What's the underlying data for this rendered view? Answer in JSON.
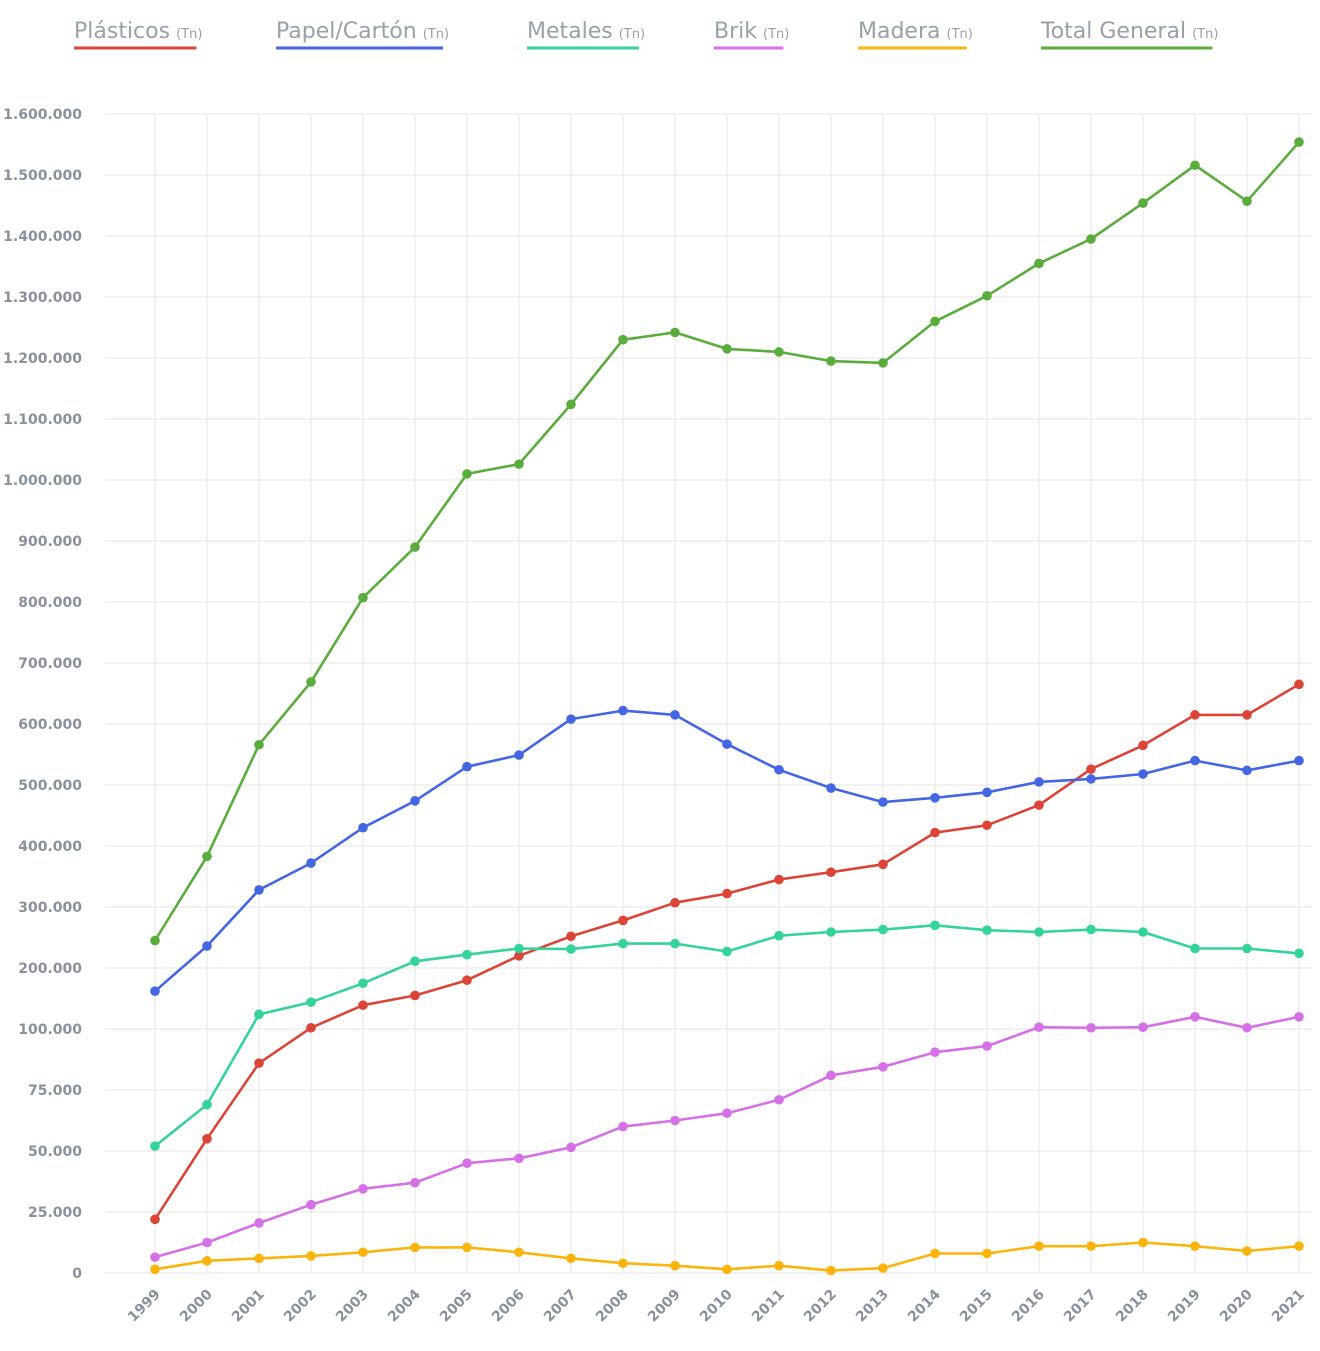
{
  "chart_data": {
    "type": "line",
    "title": "",
    "xlabel": "",
    "ylabel": "",
    "legend_position": "top",
    "grid": true,
    "y_scale": "piecewise",
    "y_ticks": [
      0,
      25000,
      50000,
      75000,
      100000,
      200000,
      300000,
      400000,
      500000,
      600000,
      700000,
      800000,
      900000,
      1000000,
      1100000,
      1200000,
      1300000,
      1400000,
      1500000,
      1600000
    ],
    "y_tick_labels": [
      "0",
      "25.000",
      "50.000",
      "75.000",
      "100.000",
      "200.000",
      "300.000",
      "400.000",
      "500.000",
      "600.000",
      "700.000",
      "800.000",
      "900.000",
      "1.000.000",
      "1.100.000",
      "1.200.000",
      "1.300.000",
      "1.400.000",
      "1.500.000",
      "1.600.000"
    ],
    "x": [
      "1999",
      "2000",
      "2001",
      "2002",
      "2003",
      "2004",
      "2005",
      "2006",
      "2007",
      "2008",
      "2009",
      "2010",
      "2011",
      "2012",
      "2013",
      "2014",
      "2015",
      "2016",
      "2017",
      "2018",
      "2019",
      "2020",
      "2021"
    ],
    "series": [
      {
        "name": "Plásticos",
        "unit": "(Tn)",
        "color": "#db4437",
        "values": [
          22000,
          55000,
          86000,
          102000,
          139000,
          155000,
          180000,
          220000,
          252000,
          278000,
          307000,
          322000,
          345000,
          357000,
          370000,
          422000,
          434000,
          467000,
          526000,
          565000,
          615000,
          615000,
          665000
        ]
      },
      {
        "name": "Papel/Cartón",
        "unit": "(Tn)",
        "color": "#4466e2",
        "values": [
          162000,
          236000,
          328000,
          372000,
          430000,
          474000,
          530000,
          549000,
          608000,
          622000,
          615000,
          567000,
          525000,
          495000,
          472000,
          479000,
          488000,
          505000,
          510000,
          518000,
          540000,
          524000,
          540000
        ]
      },
      {
        "name": "Metales",
        "unit": "(Tn)",
        "color": "#34d399",
        "values": [
          52000,
          69000,
          124000,
          144000,
          175000,
          211000,
          222000,
          232000,
          231000,
          240000,
          240000,
          227000,
          253000,
          259000,
          263000,
          270000,
          262000,
          259000,
          263000,
          259000,
          232000,
          232000,
          224000
        ]
      },
      {
        "name": "Brik",
        "unit": "(Tn)",
        "color": "#d670e6",
        "values": [
          6500,
          12500,
          20500,
          28000,
          34500,
          37000,
          45000,
          47000,
          51500,
          60000,
          62500,
          65500,
          71000,
          81000,
          84500,
          90500,
          93000,
          103000,
          102000,
          103000,
          120000,
          102000,
          120000
        ]
      },
      {
        "name": "Madera",
        "unit": "(Tn)",
        "color": "#fbb40c",
        "values": [
          1500,
          5000,
          6000,
          7000,
          8500,
          10500,
          10500,
          8500,
          6000,
          4000,
          3000,
          1500,
          3000,
          1000,
          2000,
          8000,
          8000,
          11000,
          11000,
          12500,
          11000,
          9000,
          11000
        ]
      },
      {
        "name": "Total General",
        "unit": "(Tn)",
        "color": "#5aad3c",
        "values": [
          245000,
          383000,
          566000,
          669000,
          807000,
          890000,
          1010000,
          1026000,
          1124000,
          1230000,
          1242000,
          1215000,
          1210000,
          1195000,
          1192000,
          1260000,
          1302000,
          1355000,
          1395000,
          1454000,
          1516000,
          1457000,
          1554000
        ]
      }
    ]
  }
}
